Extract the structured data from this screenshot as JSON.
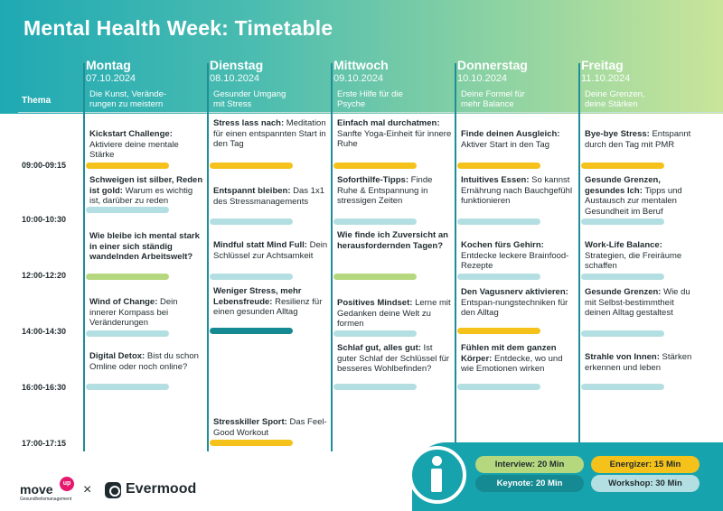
{
  "title": "Mental Health Week: Timetable",
  "thema_label": "Thema",
  "colors": {
    "green": "#b5d87e",
    "teal": "#158a93",
    "yellow": "#f5c21b",
    "light_blue": "#b4dfe2",
    "header_gradient_start": "#1fa9b3",
    "header_gradient_end": "#c9e59a"
  },
  "times": [
    "09:00-09:15",
    "10:00-10:30",
    "12:00-12:20",
    "14:00-14:30",
    "16:00-16:30",
    "17:00-17:15"
  ],
  "days": [
    {
      "name": "Montag",
      "date": "07.10.2024",
      "theme": "Die Kunst, Verände-\nrungen zu meistern",
      "sessions": [
        {
          "title": "Kickstart Challenge:",
          "desc": "Aktiviere deine mentale Stärke",
          "bar": "yellow"
        },
        {
          "title": "Schweigen ist silber, Reden ist gold:",
          "desc": "Warum es wichtig ist, darüber zu reden",
          "bar": "light_blue"
        },
        {
          "title": "Wie bleibe ich mental stark in einer sich ständig wandelnden Arbeitswelt?",
          "desc": "",
          "bar": "green"
        },
        {
          "title": "Wind of Change:",
          "desc": "Dein innerer Kompass bei Veränderungen",
          "bar": "light_blue"
        },
        {
          "title": "Digital Detox:",
          "desc": "Bist du schon Omline oder noch online?",
          "bar": "light_blue"
        }
      ]
    },
    {
      "name": "Dienstag",
      "date": "08.10.2024",
      "theme": "Gesunder Umgang\nmit Stress",
      "sessions": [
        {
          "title": "Stress lass nach:",
          "desc": "Meditation für einen entspannten Start in den Tag",
          "bar": "yellow"
        },
        {
          "title": "Entspannt bleiben:",
          "desc": "Das 1x1 des Stressmanagements",
          "bar": "light_blue"
        },
        {
          "title": "Mindful statt Mind Full:",
          "desc": "Dein Schlüssel zur Achtsamkeit",
          "bar": "light_blue"
        },
        {
          "title": "Weniger Stress, mehr Lebensfreude:",
          "desc": "Resilienz für einen gesunden Alltag",
          "bar": "teal"
        },
        {
          "title": "Stresskiller Sport:",
          "desc": "Das Feel-Good Workout",
          "bar": "yellow"
        }
      ]
    },
    {
      "name": "Mittwoch",
      "date": "09.10.2024",
      "theme": "Erste Hilfe für die\nPsyche",
      "sessions": [
        {
          "title": "Einfach mal durchatmen:",
          "desc": "Sanfte Yoga-Einheit für innere Ruhe",
          "bar": "yellow"
        },
        {
          "title": "Soforthilfe-Tipps:",
          "desc": "Finde Ruhe & Entspannung in stressigen Zeiten",
          "bar": "light_blue"
        },
        {
          "title": "Wie finde ich Zuversicht an herausfordernden Tagen?",
          "desc": "",
          "bar": "green"
        },
        {
          "title": "Positives Mindset:",
          "desc": "Lerne mit Gedanken deine Welt zu formen",
          "bar": "light_blue"
        },
        {
          "title": "Schlaf gut, alles gut:",
          "desc": "Ist guter Schlaf der Schlüssel für besseres Wohlbefinden?",
          "bar": "light_blue"
        }
      ]
    },
    {
      "name": "Donnerstag",
      "date": "10.10.2024",
      "theme": "Deine Formel für\nmehr Balance",
      "sessions": [
        {
          "title": "Finde deinen Ausgleich:",
          "desc": "Aktiver Start in den Tag",
          "bar": "yellow"
        },
        {
          "title": "Intuitives Essen:",
          "desc": "So kannst Ernährung nach Bauchgefühl funktionieren",
          "bar": "light_blue"
        },
        {
          "title": "Kochen fürs Gehirn:",
          "desc": "Entdecke leckere Brainfood-Rezepte",
          "bar": "light_blue"
        },
        {
          "title": "Den Vagusnerv aktivieren:",
          "desc": "Entspan-nungstechniken für den Alltag",
          "bar": "yellow"
        },
        {
          "title": "Fühlen mit dem ganzen Körper:",
          "desc": "Entdecke, wo und wie Emotionen wirken",
          "bar": "light_blue"
        }
      ]
    },
    {
      "name": "Freitag",
      "date": "11.10.2024",
      "theme": "Deine Grenzen,\ndeine Stärken",
      "sessions": [
        {
          "title": "Bye-bye Stress:",
          "desc": "Entspannt durch den Tag mit PMR",
          "bar": "yellow"
        },
        {
          "title": "Gesunde Grenzen, gesundes Ich:",
          "desc": "Tipps und Austausch zur mentalen Gesundheit im Beruf",
          "bar": "light_blue"
        },
        {
          "title": "Work-Life Balance:",
          "desc": "Strategien, die Freiräume schaffen",
          "bar": "light_blue"
        },
        {
          "title": "Gesunde Grenzen:",
          "desc": "Wie du mit Selbst-bestimmtheit deinen Alltag gestaltest",
          "bar": "light_blue"
        },
        {
          "title": "Strahle von Innen:",
          "desc": "Stärken erkennen und leben",
          "bar": "light_blue"
        }
      ]
    }
  ],
  "legend": {
    "interview": "Interview: 20 Min",
    "energizer": "Energizer: 15 Min",
    "keynote": "Keynote: 20 Min",
    "workshop": "Workshop: 30 Min"
  },
  "logos": {
    "move": "move",
    "up": "up",
    "move_sub": "Gesundheitsmanagement",
    "separator": "×",
    "evermood": "Evermood"
  }
}
